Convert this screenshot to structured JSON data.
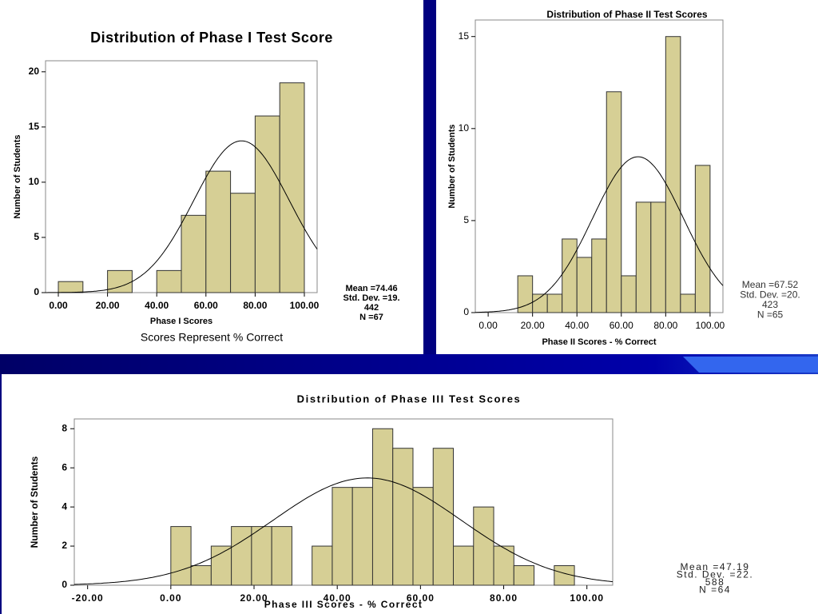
{
  "chart_data": [
    {
      "type": "histogram",
      "title": "Distribution of Phase I Test Score",
      "x_label": "Phase I Scores",
      "y_label": "Number of Students",
      "note": "Scores Represent % Correct",
      "bins": [
        0,
        10,
        20,
        30,
        40,
        50,
        60,
        70,
        80,
        90,
        100
      ],
      "counts": [
        1,
        0,
        2,
        0,
        2,
        7,
        11,
        9,
        16,
        19
      ],
      "color": "#d6cf95",
      "xlim": [
        -5.2,
        105.2
      ],
      "ylim": [
        0,
        21
      ],
      "xticks": [
        {
          "value": 0,
          "label": "0.00"
        },
        {
          "value": 20,
          "label": "20.00"
        },
        {
          "value": 40,
          "label": "40.00"
        },
        {
          "value": 60,
          "label": "60.00"
        },
        {
          "value": 80,
          "label": "80.00"
        },
        {
          "value": 100,
          "label": "100.00"
        }
      ],
      "yticks": [
        0,
        5,
        10,
        15,
        20
      ],
      "normal_curve": {
        "mean": 74.46,
        "std_dev": 19.442,
        "n": 67
      },
      "stats_labels": [
        "Mean =74.46",
        "Std. Dev. =19.",
        "442",
        "N =67"
      ]
    },
    {
      "type": "histogram",
      "title": "Distribution of Phase II Test Scores",
      "x_label": "Phase II Scores - % Correct",
      "y_label": "Number of Students",
      "bins": [
        13.33,
        20,
        26.67,
        33.33,
        40,
        46.67,
        53.33,
        60,
        66.67,
        73.33,
        80,
        86.67,
        93.33,
        100
      ],
      "counts": [
        2,
        1,
        1,
        4,
        3,
        4,
        12,
        2,
        6,
        6,
        15,
        1,
        8
      ],
      "color": "#d6cf95",
      "xlim": [
        -5.8,
        105.8
      ],
      "ylim": [
        0,
        15.9
      ],
      "xticks": [
        {
          "value": 0,
          "label": "0.00"
        },
        {
          "value": 20,
          "label": "20.00"
        },
        {
          "value": 40,
          "label": "40.00"
        },
        {
          "value": 60,
          "label": "60.00"
        },
        {
          "value": 80,
          "label": "80.00"
        },
        {
          "value": 100,
          "label": "100.00"
        }
      ],
      "yticks": [
        0,
        5,
        10,
        15
      ],
      "normal_curve": {
        "mean": 67.52,
        "std_dev": 20.423,
        "n": 65
      },
      "stats_labels": [
        "Mean =67.52",
        "Std. Dev. =20.",
        "423",
        "N =65"
      ]
    },
    {
      "type": "histogram",
      "title": "Distribution of Phase III Test Scores",
      "x_label": "Phase III Scores - % Correct",
      "y_label": "Number of Students",
      "bins": [
        0,
        4.85,
        9.7,
        14.55,
        19.4,
        24.25,
        29.1,
        33.95,
        38.8,
        43.65,
        48.5,
        53.35,
        58.2,
        63.05,
        67.9,
        72.75,
        77.6,
        82.45,
        87.3,
        92.15,
        97
      ],
      "counts": [
        3,
        1,
        2,
        3,
        3,
        3,
        0,
        2,
        5,
        5,
        8,
        7,
        5,
        7,
        2,
        4,
        2,
        1,
        0,
        1
      ],
      "color": "#d6cf95",
      "xlim": [
        -23.2,
        106.2
      ],
      "ylim": [
        0,
        8.5
      ],
      "xticks": [
        {
          "value": -20,
          "label": "-20.00"
        },
        {
          "value": 0,
          "label": "0.00"
        },
        {
          "value": 20,
          "label": "20.00"
        },
        {
          "value": 40,
          "label": "40.00"
        },
        {
          "value": 60,
          "label": "60.00"
        },
        {
          "value": 80,
          "label": "80.00"
        },
        {
          "value": 100,
          "label": "100.00"
        }
      ],
      "yticks": [
        0,
        2,
        4,
        6,
        8
      ],
      "normal_curve": {
        "mean": 47.19,
        "std_dev": 22.588,
        "n": 64
      },
      "stats_labels": [
        "Mean =47.19",
        "Std. Dev. =22.",
        "588",
        "N =64"
      ]
    }
  ]
}
